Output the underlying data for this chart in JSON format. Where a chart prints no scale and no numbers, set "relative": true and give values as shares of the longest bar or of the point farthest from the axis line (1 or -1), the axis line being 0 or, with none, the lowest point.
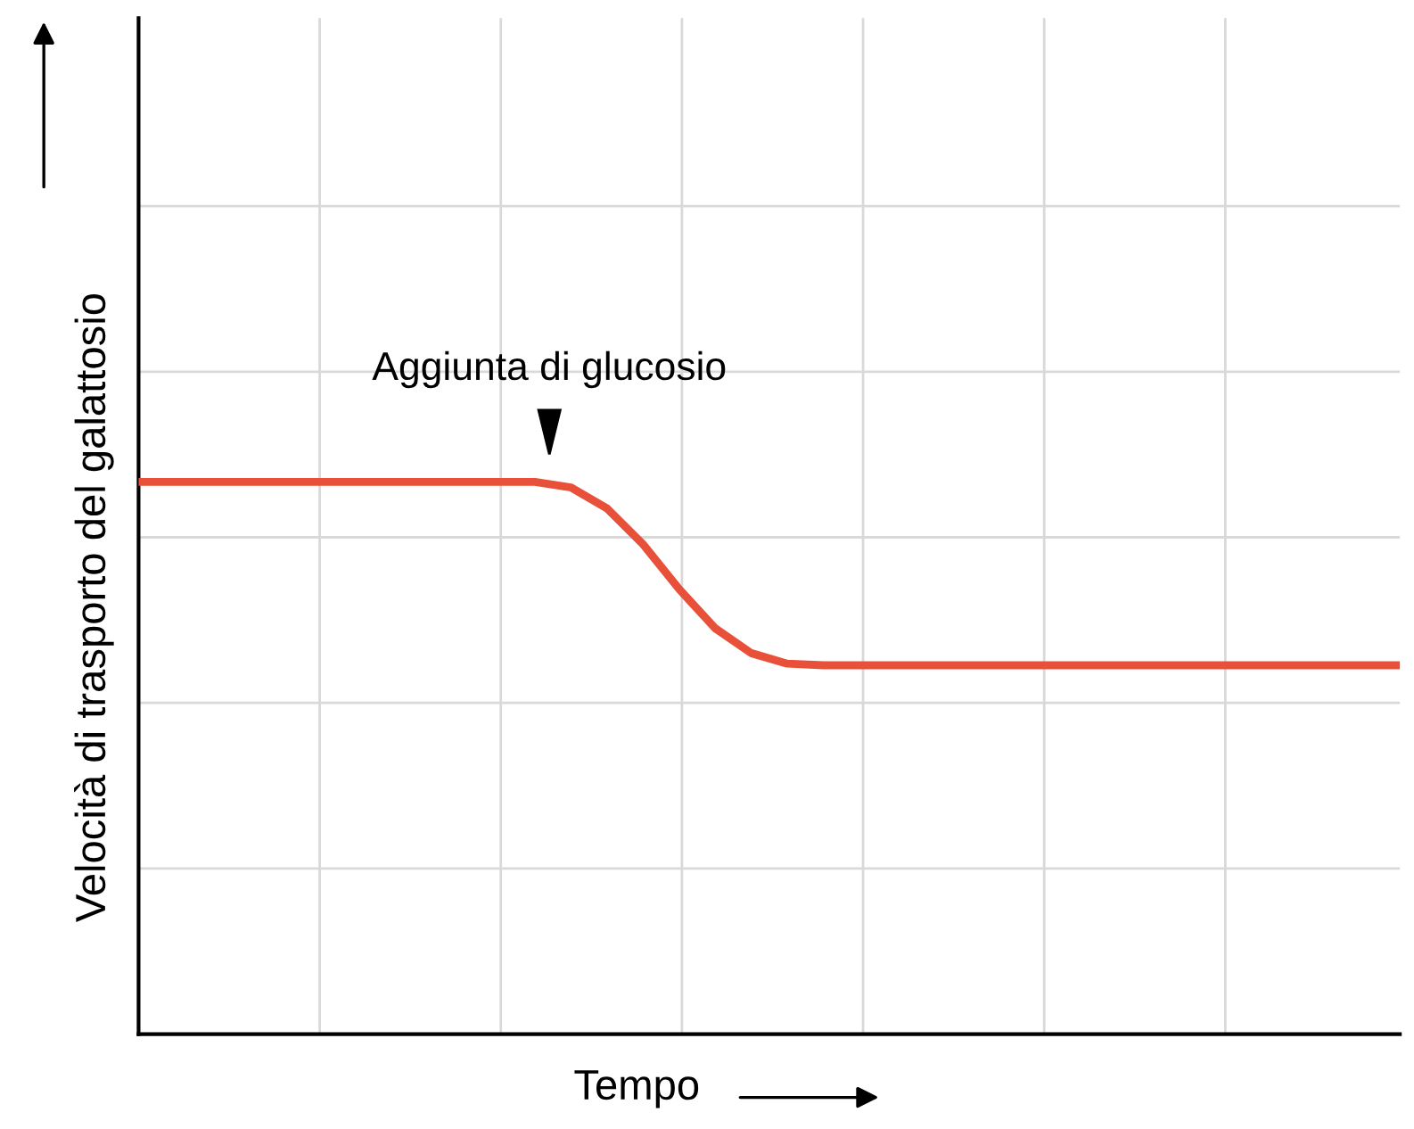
{
  "chart_data": {
    "type": "line",
    "relative": true,
    "xlabel": "Tempo",
    "ylabel": "Velocità di trasporto del galattosio",
    "grid": true,
    "categories": [
      null,
      null,
      null,
      null,
      null,
      null,
      null,
      null,
      null,
      null,
      null,
      null,
      null,
      null,
      null,
      null,
      null,
      null,
      null,
      null,
      null,
      null,
      null,
      null,
      null,
      null,
      null,
      null,
      null,
      null,
      null,
      null,
      null,
      null,
      null,
      null
    ],
    "series": [
      {
        "color": "#e8503a",
        "values": [
          1,
          1,
          1,
          1,
          1,
          1,
          1,
          1,
          1,
          1,
          1,
          1,
          0.99,
          0.952,
          0.887,
          0.806,
          0.735,
          0.69,
          0.671,
          0.668,
          0.668,
          0.668,
          0.668,
          0.668,
          0.668,
          0.668,
          0.668,
          0.668,
          0.668,
          0.668,
          0.668,
          0.668,
          0.668,
          0.668,
          0.668,
          0.668
        ]
      }
    ],
    "annotations": [
      "Aggiunta di glucosio"
    ]
  }
}
